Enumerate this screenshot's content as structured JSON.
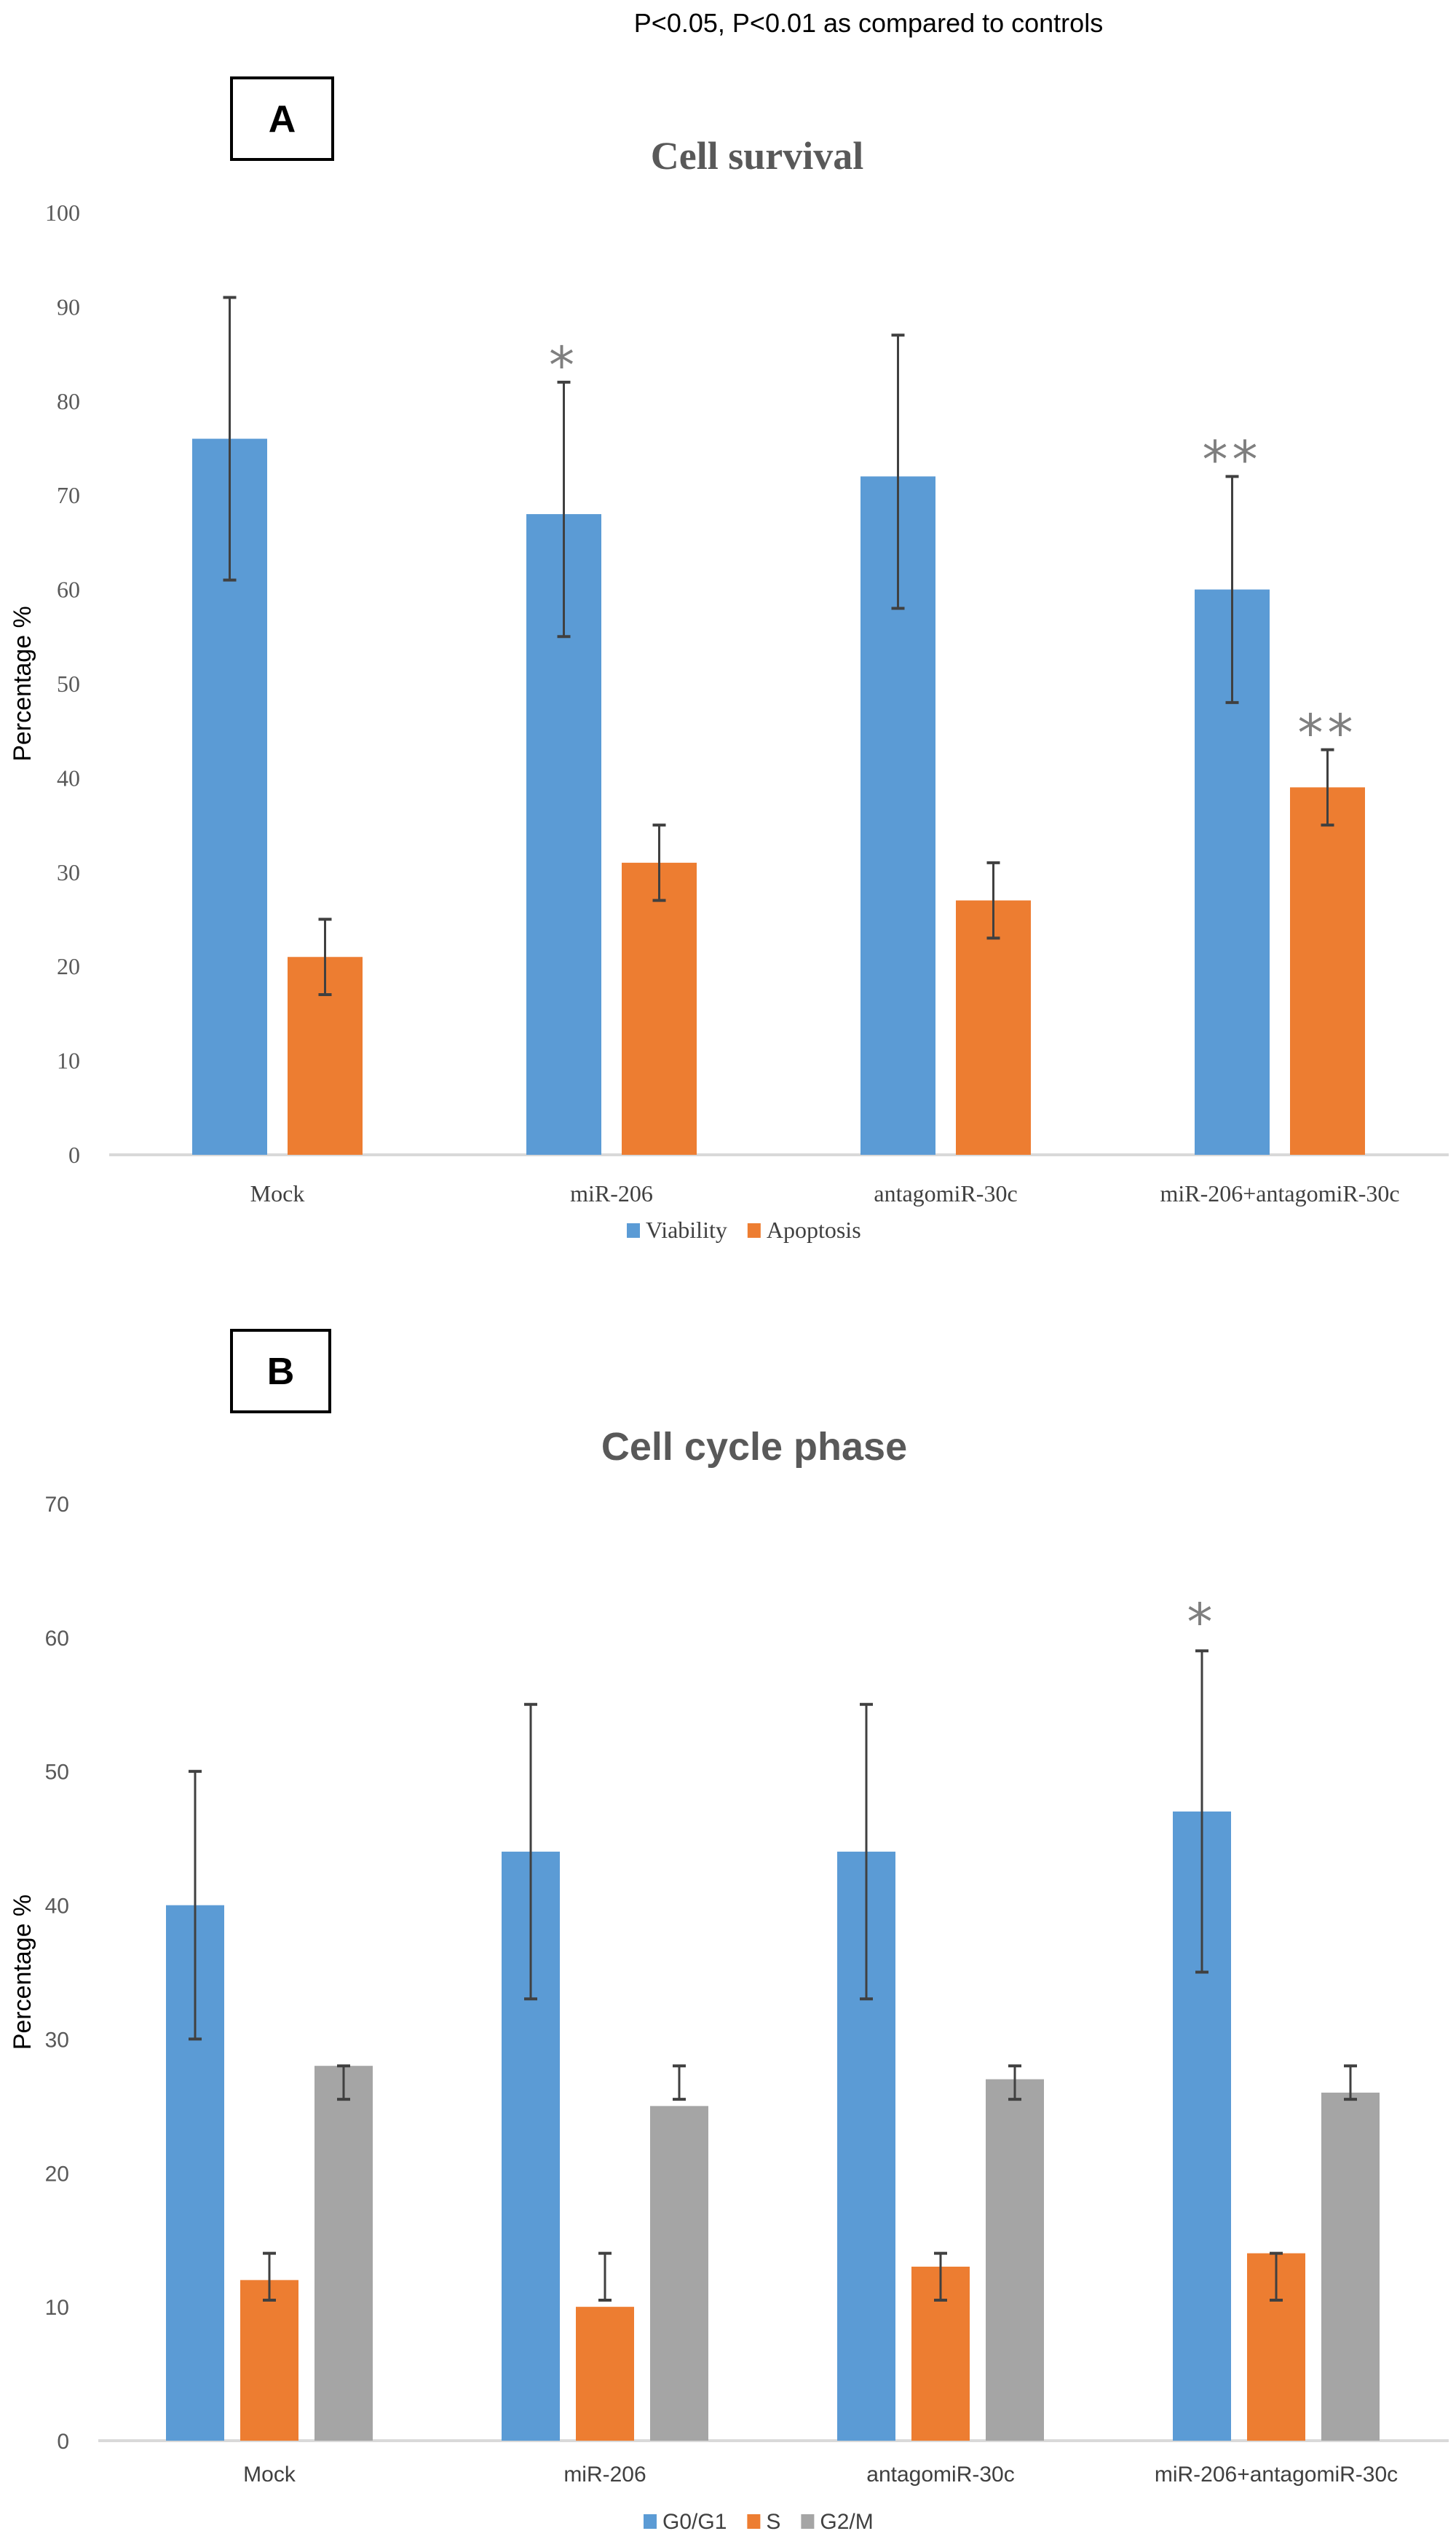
{
  "note": "P<0.05, P<0.01 as compared to controls",
  "chart_data": [
    {
      "panel": "A",
      "type": "bar",
      "title": "Cell survival",
      "ylabel": "Percentage %",
      "xlabel": "",
      "ylim": [
        0,
        100
      ],
      "yticks": [
        0,
        10,
        20,
        30,
        40,
        50,
        60,
        70,
        80,
        90,
        100
      ],
      "grid": false,
      "legend_position": "bottom",
      "categories": [
        "Mock",
        "miR-206",
        "antagomiR-30c",
        "miR-206+antagomiR-30c"
      ],
      "series": [
        {
          "name": "Viability",
          "color": "#5B9BD5",
          "values": [
            76,
            68,
            72,
            60
          ],
          "err_low": [
            61,
            55,
            58,
            48
          ],
          "err_high": [
            91,
            82,
            87,
            72
          ]
        },
        {
          "name": "Apoptosis",
          "color": "#ED7D31",
          "values": [
            21,
            31,
            27,
            39
          ],
          "err_low": [
            17,
            27,
            23,
            35
          ],
          "err_high": [
            25,
            35,
            31,
            43
          ]
        }
      ],
      "annotations": [
        {
          "text": "*",
          "category": "miR-206",
          "series": "Viability",
          "y": 85
        },
        {
          "text": "**",
          "category": "miR-206+antagomiR-30c",
          "series": "Viability",
          "y": 75
        },
        {
          "text": "**",
          "category": "miR-206+antagomiR-30c",
          "series": "Apoptosis",
          "y": 46
        }
      ]
    },
    {
      "panel": "B",
      "type": "bar",
      "title": "Cell cycle phase",
      "ylabel": "Percentage %",
      "xlabel": "",
      "ylim": [
        0,
        70
      ],
      "yticks": [
        0,
        10,
        20,
        30,
        40,
        50,
        60,
        70
      ],
      "grid": false,
      "legend_position": "bottom",
      "categories": [
        "Mock",
        "miR-206",
        "antagomiR-30c",
        "miR-206+antagomiR-30c"
      ],
      "series": [
        {
          "name": "G0/G1",
          "color": "#5B9BD5",
          "values": [
            40,
            44,
            44,
            47
          ],
          "err_low": [
            30,
            33,
            33,
            35
          ],
          "err_high": [
            50,
            55,
            55,
            59
          ]
        },
        {
          "name": "S",
          "color": "#ED7D31",
          "values": [
            12,
            10,
            13,
            14
          ],
          "err_low": [
            10.5,
            10.5,
            10.5,
            10.5
          ],
          "err_high": [
            14,
            14,
            14,
            14
          ]
        },
        {
          "name": "G2/M",
          "color": "#A5A5A5",
          "values": [
            28,
            25,
            27,
            26
          ],
          "err_low": [
            25.5,
            25.5,
            25.5,
            25.5
          ],
          "err_high": [
            28,
            28,
            28,
            28
          ]
        }
      ],
      "annotations": [
        {
          "text": "*",
          "category": "miR-206+antagomiR-30c",
          "series": "G0/G1",
          "y": 62
        }
      ]
    }
  ]
}
